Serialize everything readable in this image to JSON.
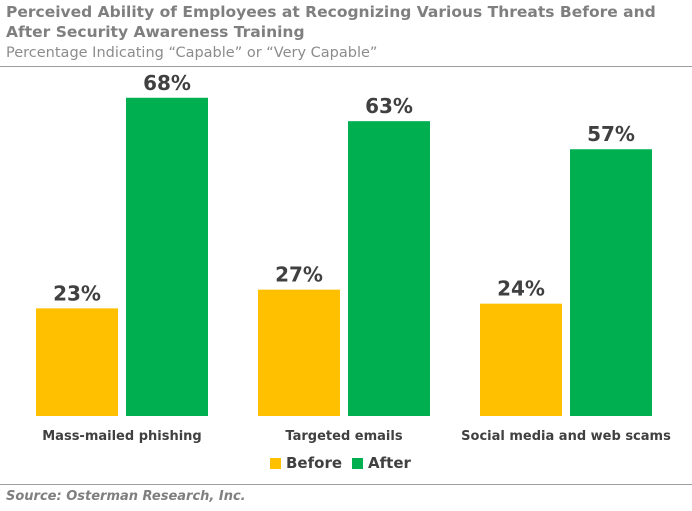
{
  "header": {
    "title": "Perceived Ability of Employees at Recognizing Various Threats Before and After Security Awareness Training",
    "subtitle": "Percentage Indicating “Capable” or “Very Capable”"
  },
  "footer": {
    "source": "Source: Osterman Research, Inc."
  },
  "colors": {
    "before": "#FFC000",
    "after": "#00B050",
    "label": "#404040",
    "text_gray": "#7F7F7F"
  },
  "chart_data": {
    "type": "bar",
    "categories": [
      "Mass-mailed phishing",
      "Targeted emails",
      "Social media and web scams"
    ],
    "series": [
      {
        "name": "Before",
        "values": [
          23,
          27,
          24
        ],
        "labels": [
          "23%",
          "27%",
          "24%"
        ]
      },
      {
        "name": "After",
        "values": [
          68,
          63,
          57
        ],
        "labels": [
          "68%",
          "63%",
          "57%"
        ]
      }
    ],
    "ylim": [
      0,
      75
    ],
    "grid": false,
    "legend_position": "bottom"
  }
}
